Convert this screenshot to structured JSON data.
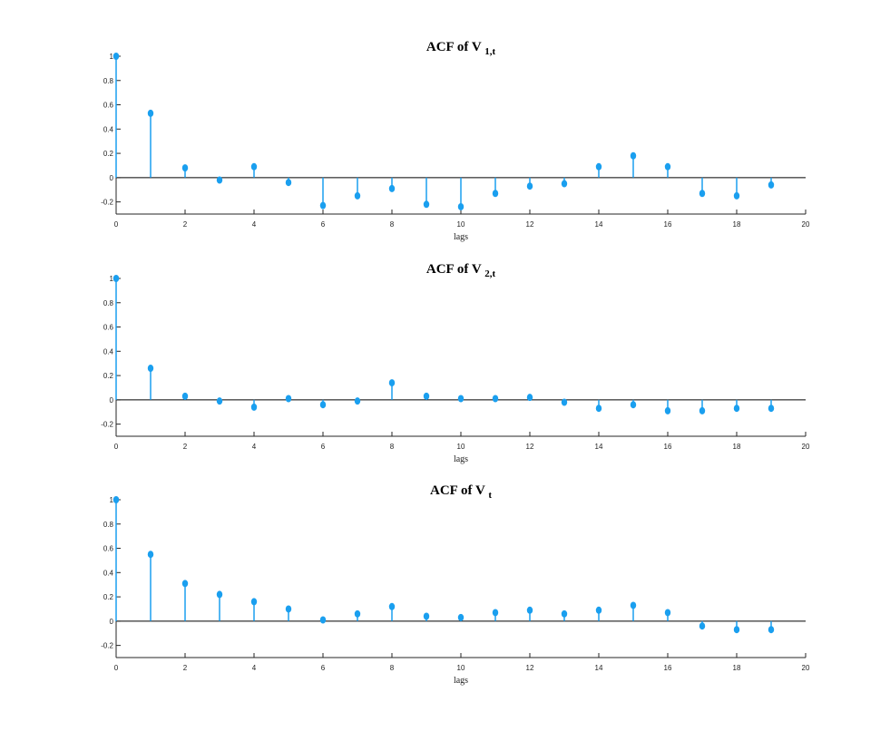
{
  "figure_background": "#ffffff",
  "stem_color": "#1a9fef",
  "chart_data": [
    {
      "type": "stem",
      "title": "ACF of V",
      "title_subscript": "1,t",
      "xlabel": "lags",
      "ylabel": "",
      "xlim": [
        0,
        20
      ],
      "ylim": [
        -0.3,
        1.0
      ],
      "xticks": [
        "0",
        "2",
        "4",
        "6",
        "8",
        "10",
        "12",
        "14",
        "16",
        "18",
        "20"
      ],
      "yticks": [
        "-0.2",
        "0",
        "0.2",
        "0.4",
        "0.6",
        "0.8",
        "1"
      ],
      "x": [
        0,
        1,
        2,
        3,
        4,
        5,
        6,
        7,
        8,
        9,
        10,
        11,
        12,
        13,
        14,
        15,
        16,
        17,
        18,
        19
      ],
      "values": [
        1.0,
        0.53,
        0.08,
        -0.02,
        0.09,
        -0.04,
        -0.23,
        -0.15,
        -0.09,
        -0.22,
        -0.24,
        -0.13,
        -0.07,
        -0.05,
        0.09,
        0.18,
        0.09,
        -0.13,
        -0.15,
        -0.06
      ]
    },
    {
      "type": "stem",
      "title": "ACF of V",
      "title_subscript": "2,t",
      "xlabel": "lags",
      "ylabel": "",
      "xlim": [
        0,
        20
      ],
      "ylim": [
        -0.3,
        1.0
      ],
      "xticks": [
        "0",
        "2",
        "4",
        "6",
        "8",
        "10",
        "12",
        "14",
        "16",
        "18",
        "20"
      ],
      "yticks": [
        "-0.2",
        "0",
        "0.2",
        "0.4",
        "0.6",
        "0.8",
        "1"
      ],
      "x": [
        0,
        1,
        2,
        3,
        4,
        5,
        6,
        7,
        8,
        9,
        10,
        11,
        12,
        13,
        14,
        15,
        16,
        17,
        18,
        19
      ],
      "values": [
        1.0,
        0.26,
        0.03,
        -0.01,
        -0.06,
        0.01,
        -0.04,
        -0.01,
        0.14,
        0.03,
        0.01,
        0.01,
        0.02,
        -0.02,
        -0.07,
        -0.04,
        -0.09,
        -0.09,
        -0.07,
        -0.07
      ]
    },
    {
      "type": "stem",
      "title": "ACF of V",
      "title_subscript": "t",
      "xlabel": "lags",
      "ylabel": "",
      "xlim": [
        0,
        20
      ],
      "ylim": [
        -0.3,
        1.0
      ],
      "xticks": [
        "0",
        "2",
        "4",
        "6",
        "8",
        "10",
        "12",
        "14",
        "16",
        "18",
        "20"
      ],
      "yticks": [
        "-0.2",
        "0",
        "0.2",
        "0.4",
        "0.6",
        "0.8",
        "1"
      ],
      "x": [
        0,
        1,
        2,
        3,
        4,
        5,
        6,
        7,
        8,
        9,
        10,
        11,
        12,
        13,
        14,
        15,
        16,
        17,
        18,
        19
      ],
      "values": [
        1.0,
        0.55,
        0.31,
        0.22,
        0.16,
        0.1,
        0.01,
        0.06,
        0.12,
        0.04,
        0.03,
        0.07,
        0.09,
        0.06,
        0.09,
        0.13,
        0.07,
        -0.04,
        -0.07,
        -0.07
      ]
    }
  ]
}
